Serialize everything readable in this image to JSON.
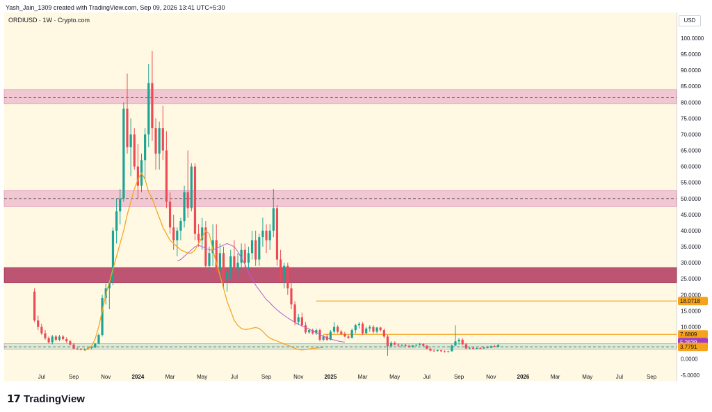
{
  "caption": "Yash_Jain_1309 created with TradingView.com, Sep 09, 2026 13:41 UTC+5:30",
  "symbol_line": "ORDIUSD · 1W · Crypto.com",
  "currency": "USD",
  "brand": {
    "mark": "17",
    "name": "TradingView"
  },
  "colors": {
    "up": "#1ba393",
    "down": "#ee4955",
    "ema_fast": "#f5a623",
    "ema_slow": "#b25cd6",
    "zone_light": "#e8a6c4",
    "zone_dark": "#b2385e",
    "zone_green": "#c9e4cf",
    "level_line": "#f5a623",
    "tag_orange": "#f7a21b",
    "tag_purple": "#a23bcc"
  },
  "chart_data": {
    "type": "candlestick",
    "timeframe": "1W",
    "y_ticks": [
      "100.0000",
      "95.0000",
      "90.0000",
      "85.0000",
      "80.0000",
      "75.0000",
      "70.0000",
      "65.0000",
      "60.0000",
      "55.0000",
      "50.0000",
      "45.0000",
      "40.0000",
      "35.0000",
      "30.0000",
      "25.0000",
      "20.0000",
      "15.0000",
      "10.0000",
      "5.0000",
      "0.0000",
      "-5.0000"
    ],
    "y_tick_values": [
      100,
      95,
      90,
      85,
      80,
      75,
      70,
      65,
      60,
      55,
      50,
      45,
      40,
      35,
      30,
      25,
      20,
      15,
      10,
      5,
      0,
      -5
    ],
    "ylim": [
      -7,
      108
    ],
    "x_ticks": [
      {
        "label": "Jul",
        "t": 2
      },
      {
        "label": "Sep",
        "t": 11
      },
      {
        "label": "Nov",
        "t": 20
      },
      {
        "label": "2024",
        "t": 29,
        "bold": true
      },
      {
        "label": "Mar",
        "t": 38
      },
      {
        "label": "May",
        "t": 47
      },
      {
        "label": "Jul",
        "t": 56
      },
      {
        "label": "Sep",
        "t": 65
      },
      {
        "label": "Nov",
        "t": 74
      },
      {
        "label": "2025",
        "t": 83,
        "bold": true
      },
      {
        "label": "Mar",
        "t": 92
      },
      {
        "label": "May",
        "t": 101
      },
      {
        "label": "Jul",
        "t": 110
      },
      {
        "label": "Sep",
        "t": 119
      },
      {
        "label": "Nov",
        "t": 128
      },
      {
        "label": "2026",
        "t": 137,
        "bold": true
      },
      {
        "label": "Mar",
        "t": 146
      },
      {
        "label": "May",
        "t": 155
      },
      {
        "label": "Jul",
        "t": 164
      },
      {
        "label": "Sep",
        "t": 173
      }
    ],
    "xlim": [
      -8.5,
      180
    ],
    "zones": [
      {
        "from": 79.5,
        "to": 84.0,
        "style": "light",
        "mid": 81.5
      },
      {
        "from": 47.5,
        "to": 52.5,
        "style": "light",
        "mid": 50.0
      },
      {
        "from": 23.8,
        "to": 28.5,
        "style": "dark",
        "mid": null
      },
      {
        "from": 3.0,
        "to": 4.8,
        "style": "green",
        "mid": 3.8
      }
    ],
    "levels": [
      {
        "value": 18.0718,
        "t_start": 79
      },
      {
        "value": 7.6809,
        "t_start": 81
      }
    ],
    "tags": [
      {
        "label": "18.0718",
        "value": 18.0718,
        "color": "orange"
      },
      {
        "label": "7.6809",
        "value": 7.6809,
        "color": "orange"
      },
      {
        "label": "5.2639",
        "value": 5.2639,
        "color": "purple"
      },
      {
        "label": "3.7791",
        "value": 3.7791,
        "color": "orange"
      }
    ],
    "candles": [
      [
        21,
        22,
        11.5,
        12
      ],
      [
        12,
        13.5,
        9,
        10
      ],
      [
        10,
        11,
        7.5,
        8
      ],
      [
        8,
        9,
        6,
        6.5
      ],
      [
        6.5,
        7,
        4.8,
        5.2
      ],
      [
        5.2,
        7.5,
        4.6,
        7
      ],
      [
        7,
        7.5,
        5.5,
        6
      ],
      [
        6,
        7.5,
        5.5,
        7
      ],
      [
        7,
        7.5,
        5.8,
        6.2
      ],
      [
        6.2,
        6.8,
        5,
        5.5
      ],
      [
        5.5,
        6,
        4.2,
        4.5
      ],
      [
        4.5,
        5,
        3,
        3.2
      ],
      [
        3.2,
        3.6,
        2.8,
        3
      ],
      [
        3,
        3.4,
        2.7,
        2.9
      ],
      [
        2.9,
        3.3,
        2.7,
        3.1
      ],
      [
        3.1,
        3.6,
        2.9,
        3.4
      ],
      [
        3.4,
        3.9,
        3,
        3.6
      ],
      [
        3.6,
        5,
        3.4,
        4.8
      ],
      [
        4.8,
        8,
        4.6,
        7.5
      ],
      [
        7.5,
        20,
        7,
        19
      ],
      [
        19,
        23.5,
        17,
        22
      ],
      [
        22,
        25,
        15.5,
        24
      ],
      [
        24,
        41,
        23,
        40
      ],
      [
        40,
        50,
        36,
        46
      ],
      [
        46,
        53,
        42,
        50
      ],
      [
        50,
        80,
        49,
        78
      ],
      [
        78,
        89,
        64,
        66
      ],
      [
        66,
        75,
        57,
        70
      ],
      [
        70,
        72,
        59,
        60
      ],
      [
        60,
        67,
        50,
        54
      ],
      [
        54,
        64,
        52,
        62
      ],
      [
        62,
        72,
        56,
        70
      ],
      [
        70,
        92,
        66,
        86
      ],
      [
        86,
        96,
        68,
        72
      ],
      [
        72,
        75,
        59,
        64
      ],
      [
        64,
        74,
        59,
        72
      ],
      [
        72,
        79,
        62,
        65
      ],
      [
        65,
        71,
        47,
        49
      ],
      [
        49,
        52,
        39,
        41
      ],
      [
        41,
        45,
        34,
        37
      ],
      [
        37,
        41,
        32,
        40
      ],
      [
        40,
        44,
        37,
        43
      ],
      [
        43,
        54,
        41,
        52
      ],
      [
        52,
        65,
        44,
        47
      ],
      [
        47,
        61,
        46,
        60
      ],
      [
        60,
        61,
        37,
        39
      ],
      [
        39,
        42,
        35,
        37
      ],
      [
        37,
        44,
        34,
        41
      ],
      [
        41,
        43,
        27,
        29
      ],
      [
        29,
        35,
        27,
        33
      ],
      [
        33,
        42,
        29,
        37
      ],
      [
        37,
        42,
        27,
        28
      ],
      [
        28,
        36,
        25,
        33
      ],
      [
        33,
        35,
        22,
        25
      ],
      [
        25,
        28,
        21,
        27
      ],
      [
        27,
        34,
        25,
        32
      ],
      [
        32,
        37,
        28,
        28
      ],
      [
        28,
        33,
        25,
        30
      ],
      [
        30,
        36,
        27,
        34
      ],
      [
        34,
        36,
        28,
        30
      ],
      [
        30,
        35,
        28,
        33
      ],
      [
        33,
        40,
        31,
        37
      ],
      [
        37,
        40,
        29,
        31
      ],
      [
        31,
        39,
        29,
        38
      ],
      [
        38,
        44,
        35,
        40
      ],
      [
        40,
        42,
        33,
        37
      ],
      [
        37,
        42,
        34,
        40
      ],
      [
        40,
        53,
        38,
        47
      ],
      [
        47,
        48,
        29,
        31
      ],
      [
        31,
        34,
        24,
        25
      ],
      [
        25,
        30,
        22,
        29
      ],
      [
        29,
        30,
        20,
        22
      ],
      [
        22,
        24,
        15.5,
        17
      ],
      [
        17,
        18,
        10.5,
        11.5
      ],
      [
        11.5,
        14,
        10.5,
        13
      ],
      [
        13,
        14.5,
        10,
        10.5
      ],
      [
        10.5,
        11.5,
        7.8,
        8.3
      ],
      [
        8.3,
        9.5,
        7.8,
        9
      ],
      [
        9,
        9.5,
        7.6,
        8
      ],
      [
        8,
        9.5,
        7.5,
        9
      ],
      [
        9,
        9.5,
        5.5,
        6
      ],
      [
        6,
        7.5,
        5.5,
        7
      ],
      [
        7,
        7.7,
        5.6,
        6
      ],
      [
        6,
        9,
        5.8,
        8.5
      ],
      [
        8.5,
        11.5,
        8,
        10
      ],
      [
        10,
        10.5,
        8,
        8.5
      ],
      [
        8.5,
        9,
        7.5,
        7.8
      ],
      [
        7.8,
        8.5,
        6.8,
        7
      ],
      [
        7,
        7.5,
        6.3,
        6.6
      ],
      [
        6.6,
        9.5,
        6.4,
        9
      ],
      [
        9,
        11,
        8,
        10.5
      ],
      [
        10.5,
        11.5,
        9.5,
        11
      ],
      [
        11,
        11.5,
        7.5,
        8
      ],
      [
        8,
        10,
        7.8,
        9.5
      ],
      [
        9.5,
        10.5,
        8.5,
        10
      ],
      [
        10,
        10.5,
        8,
        8.5
      ],
      [
        8.5,
        10,
        8,
        9.8
      ],
      [
        9.8,
        10,
        8.5,
        9
      ],
      [
        9,
        9.5,
        6.5,
        7
      ],
      [
        7,
        7.5,
        1,
        4
      ],
      [
        4,
        5.5,
        3.5,
        5
      ],
      [
        5,
        5.5,
        4.2,
        4.5
      ],
      [
        4.5,
        4.8,
        3.8,
        4.2
      ],
      [
        4.2,
        4.6,
        3.6,
        4.4
      ],
      [
        4.4,
        4.7,
        3.9,
        4.1
      ],
      [
        4.1,
        4.5,
        3.5,
        3.8
      ],
      [
        3.8,
        4.4,
        3.5,
        4.2
      ],
      [
        4.2,
        4.6,
        3.9,
        4.4
      ],
      [
        4.4,
        5,
        4.1,
        4.7
      ],
      [
        4.7,
        4.9,
        3.9,
        4.1
      ],
      [
        4.1,
        4.4,
        3,
        3.2
      ],
      [
        3.2,
        3.6,
        2.4,
        2.6
      ],
      [
        2.6,
        3,
        2.3,
        2.5
      ],
      [
        2.5,
        2.9,
        2.3,
        2.7
      ],
      [
        2.7,
        2.9,
        2.2,
        2.4
      ],
      [
        2.4,
        2.7,
        2,
        2.2
      ],
      [
        2.2,
        2.6,
        2,
        2.4
      ],
      [
        2.4,
        4.5,
        2.3,
        4.2
      ],
      [
        4.2,
        10.5,
        4,
        5.5
      ],
      [
        5.5,
        6.5,
        4.5,
        6
      ],
      [
        6,
        6.5,
        4.3,
        4.6
      ],
      [
        4.6,
        5,
        3,
        3.3
      ],
      [
        3.3,
        3.8,
        3,
        3.5
      ],
      [
        3.5,
        3.7,
        3,
        3.2
      ],
      [
        3.2,
        3.6,
        3,
        3.4
      ],
      [
        3.4,
        3.7,
        3.1,
        3.3
      ],
      [
        3.3,
        3.8,
        3.1,
        3.6
      ],
      [
        3.6,
        4,
        3.3,
        3.5
      ],
      [
        3.5,
        4.2,
        3.4,
        4
      ],
      [
        4,
        4.4,
        3.6,
        3.8
      ],
      [
        3.8,
        4.6,
        3.6,
        4.4
      ]
    ],
    "ema_fast_start": 14,
    "ema_fast": [
      2.5,
      3.2,
      4,
      6.2,
      10,
      15,
      20,
      24,
      28,
      32,
      36,
      40,
      45,
      49,
      53,
      56,
      58,
      56,
      52,
      50,
      47,
      44,
      41,
      39,
      37,
      36,
      35,
      34,
      33.5,
      33,
      33,
      34,
      36,
      38,
      40,
      39,
      34,
      30,
      26,
      22,
      18,
      15,
      12,
      10.5,
      9.5,
      9.2,
      9.3,
      9.6,
      9.8,
      9.5,
      8.6,
      7.4,
      6.5,
      6,
      5.6,
      5.1,
      4.7,
      4.3,
      3.8,
      3.3,
      2.9,
      2.8,
      2.9,
      3.1,
      3.3,
      3.4,
      3.5,
      3.6
    ],
    "ema_slow_start": 40,
    "ema_slow": [
      30.5,
      31,
      32,
      33,
      34,
      35,
      35.5,
      35,
      34.5,
      34,
      34,
      34.5,
      35,
      35.5,
      36,
      35.5,
      35,
      33.5,
      31.5,
      29.5,
      27,
      25,
      23,
      21.5,
      20,
      18.5,
      17.5,
      16.3,
      15.3,
      14.4,
      13.6,
      12.8,
      12.1,
      11.4,
      10.8,
      10.3,
      9.8,
      9.3,
      8.8,
      8.2,
      7.6,
      7.1,
      6.6,
      6.2,
      5.9,
      5.6,
      5.4,
      5.26
    ]
  }
}
